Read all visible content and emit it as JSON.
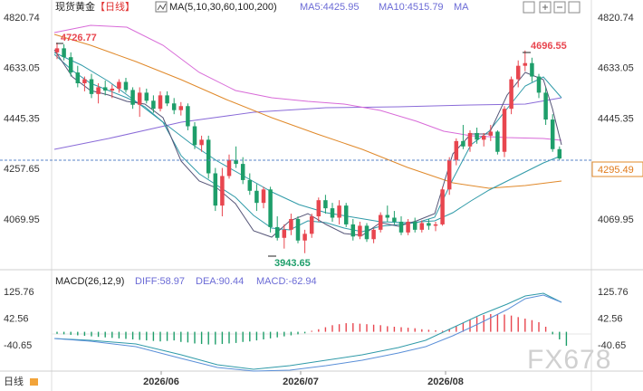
{
  "header": {
    "title": "现货黄金",
    "period": "【日线】",
    "ma_label": "MA(5,10,30,60,100,200)",
    "ma5_label": "MA5:4425.95",
    "ma10_label": "MA10:4515.79",
    "ma_more": "MA"
  },
  "macd_header": {
    "label": "MACD(26,12,9)",
    "diff_label": "DIFF:58.97",
    "dea_label": "DEA:90.44",
    "macd_label": "MACD:-62.94"
  },
  "footer": {
    "period": "日线"
  },
  "watermark": "FX678",
  "colors": {
    "up": "#e8464f",
    "down": "#1e9e6a",
    "ma5": "#555577",
    "ma10": "#2f9aa8",
    "ma30": "#9a6ad8",
    "ma60": "#d86ad8",
    "ma100": "#e08a30",
    "diff": "#2f9aa8",
    "dea": "#5a8fd8"
  },
  "chart_data": {
    "type": "candlestick",
    "price_axis": {
      "ticks": [
        4820.74,
        4633.05,
        4445.35,
        4257.65,
        4069.95
      ],
      "ticks_right": [
        4820.74,
        4633.05,
        4445.35,
        4069.95
      ]
    },
    "macd_axis": {
      "ticks": [
        125.76,
        42.56,
        -40.65
      ]
    },
    "x_labels": [
      "2026/06",
      "2026/07",
      "2026/08"
    ],
    "current_price": 4295.49,
    "annotations": {
      "high": "4726.77",
      "low": "3943.65",
      "recent_high": "4696.55"
    }
  }
}
